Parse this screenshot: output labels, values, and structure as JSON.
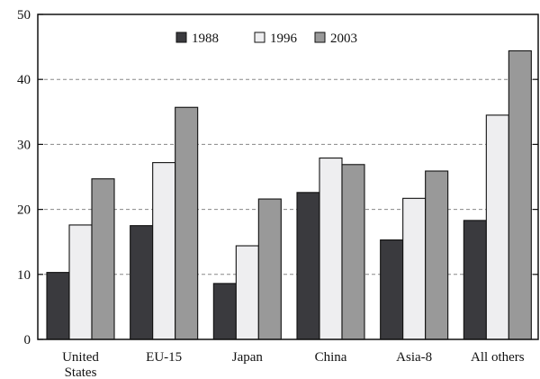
{
  "chart_data": {
    "type": "bar",
    "categories": [
      [
        "United",
        "States"
      ],
      [
        "EU-15"
      ],
      [
        "Japan"
      ],
      [
        "China"
      ],
      [
        "Asia-8"
      ],
      [
        "All others"
      ]
    ],
    "series": [
      {
        "name": "1988",
        "values": [
          10.3,
          17.5,
          8.6,
          22.6,
          15.3,
          18.3
        ]
      },
      {
        "name": "1996",
        "values": [
          17.6,
          27.2,
          14.4,
          27.9,
          21.7,
          34.5
        ]
      },
      {
        "name": "2003",
        "values": [
          24.7,
          35.7,
          21.6,
          26.9,
          25.9,
          44.4
        ]
      }
    ],
    "colors": [
      "#3a3a3e",
      "#eeeef0",
      "#999999"
    ],
    "ylim": [
      0,
      50
    ],
    "yticks": [
      0,
      10,
      20,
      30,
      40,
      50
    ],
    "grid_values": [
      10,
      20,
      30,
      40
    ],
    "grid_style": "dashed",
    "legend_position": "top-center"
  }
}
